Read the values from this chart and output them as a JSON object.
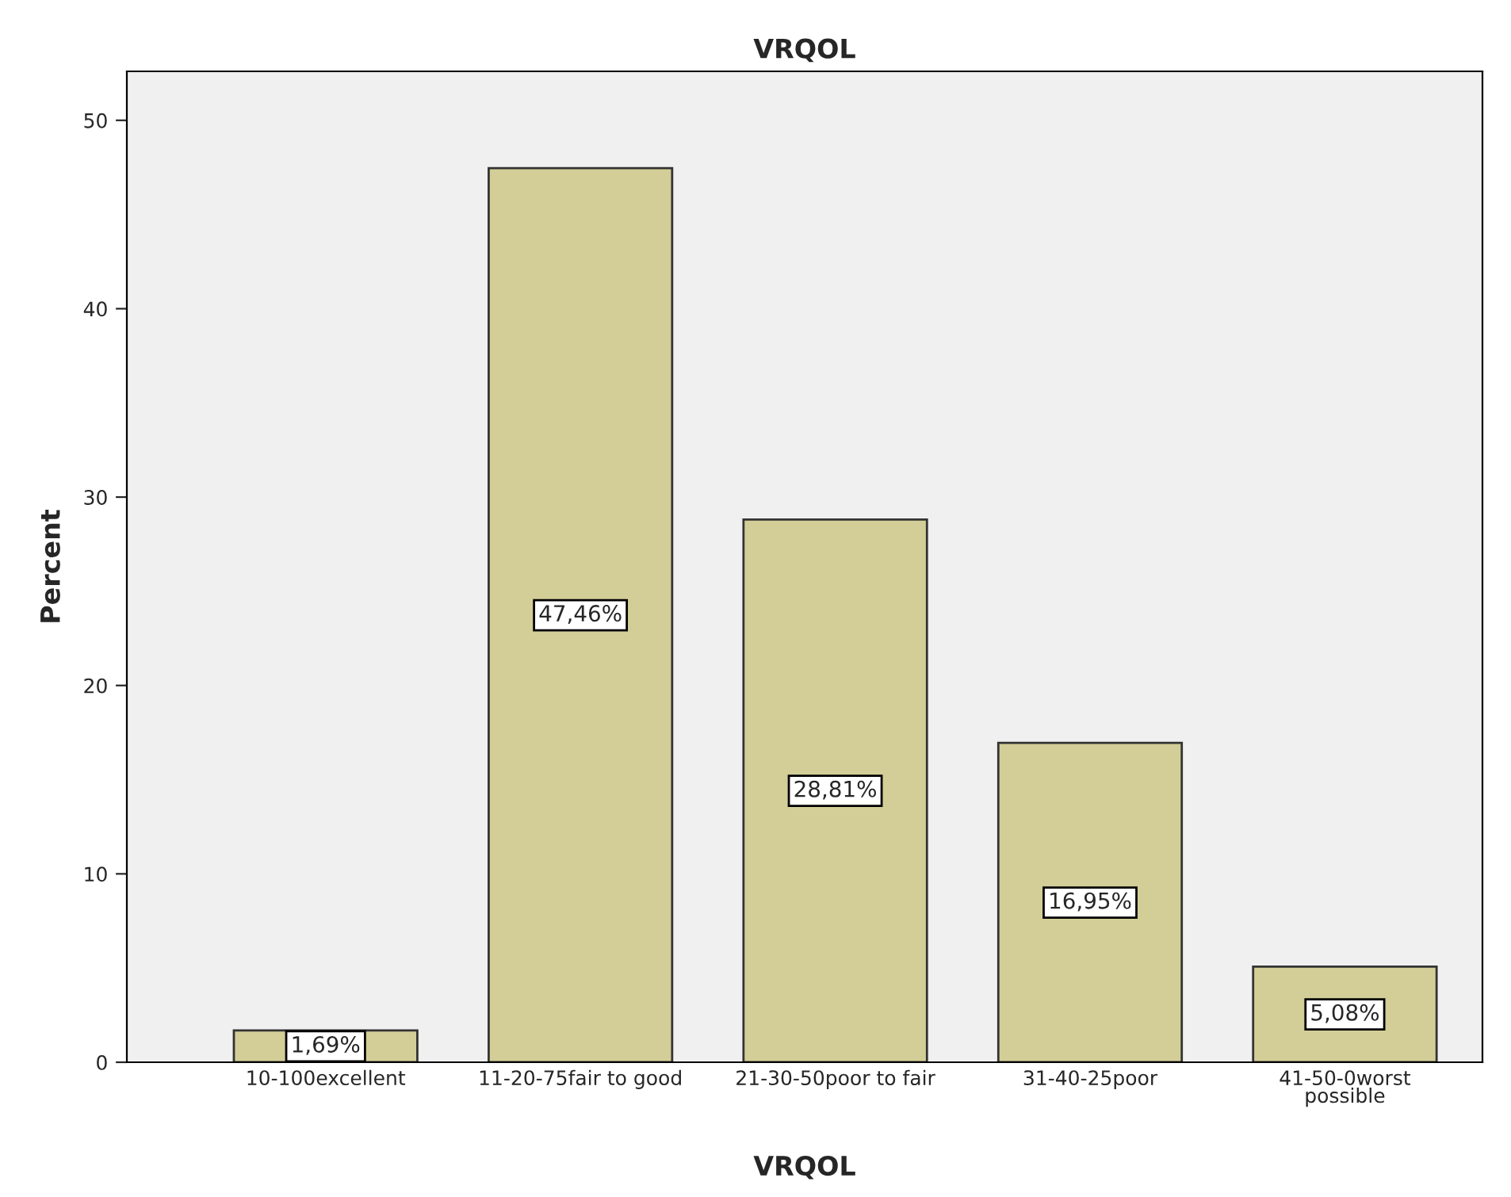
{
  "chart_data": {
    "type": "bar",
    "title": "VRQOL",
    "xlabel": "VRQOL",
    "ylabel": "Percent",
    "categories": [
      "10-100excellent",
      "11-20-75fair to good",
      "21-30-50poor to fair",
      "31-40-25poor",
      "41-50-0worst\npossible"
    ],
    "values": [
      1.69,
      47.46,
      28.81,
      16.95,
      5.08
    ],
    "value_labels": [
      "1,69%",
      "47,46%",
      "28,81%",
      "16,95%",
      "5,08%"
    ],
    "color": "#d3ce97",
    "ylim": [
      0,
      52.6
    ],
    "yticks": [
      0,
      10,
      20,
      30,
      40,
      50
    ],
    "grid": false
  }
}
